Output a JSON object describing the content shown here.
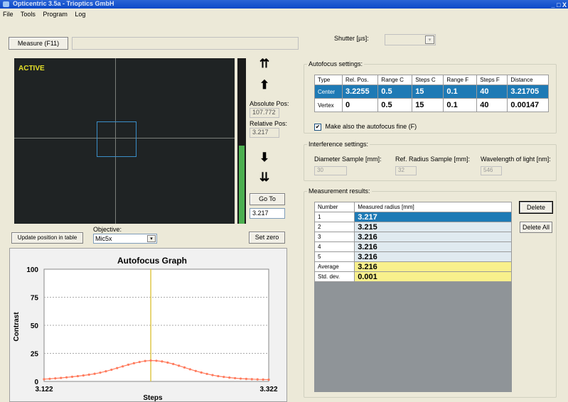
{
  "window": {
    "title": "Opticentric 3.5a - Trioptics GmbH",
    "controls": "_ □ X"
  },
  "menu": [
    "File",
    "Tools",
    "Program",
    "Log"
  ],
  "toolbar": {
    "measure_label": "Measure (F11)",
    "shutter_label": "Shutter [µs]:"
  },
  "camera": {
    "status": "ACTIVE"
  },
  "positions": {
    "absolute_label": "Absolute Pos:",
    "absolute_value": "107.772",
    "relative_label": "Relative Pos:",
    "relative_value": "3.217"
  },
  "controls": {
    "go_to_label": "Go To",
    "go_to_value": "3.217",
    "set_zero_label": "Set zero",
    "update_label": "Update position in table",
    "objective_label": "Objective:",
    "objective_value": "Mic5x"
  },
  "arrows": {
    "up_fast": "⇈",
    "up": "⬆",
    "down": "⬇",
    "down_fast": "⇊"
  },
  "autofocus": {
    "group_label": "Autofocus settings:",
    "headers": [
      "Type",
      "Rel. Pos.",
      "Range C",
      "Steps C",
      "Range F",
      "Steps F",
      "Distance"
    ],
    "rows": [
      [
        "Center",
        "3.2255",
        "0.5",
        "15",
        "0.1",
        "40",
        "3.21705"
      ],
      [
        "Vertex",
        "0",
        "0.5",
        "15",
        "0.1",
        "40",
        "0.00147"
      ]
    ],
    "fine_label": "Make also the autofocus fine (F)",
    "fine_checked": true
  },
  "interference": {
    "group_label": "Interference settings:",
    "diameter_label": "Diameter Sample [mm]:",
    "diameter_value": "30",
    "ref_radius_label": "Ref. Radius Sample [mm]:",
    "ref_radius_value": "32",
    "wavelength_label": "Wavelength of light [nm]:",
    "wavelength_value": "546"
  },
  "results": {
    "group_label": "Measurement results:",
    "headers": [
      "Number",
      "Measured radius [mm]"
    ],
    "rows": [
      [
        "1",
        "3.217"
      ],
      [
        "2",
        "3.215"
      ],
      [
        "3",
        "3.216"
      ],
      [
        "4",
        "3.216"
      ],
      [
        "5",
        "3.216"
      ]
    ],
    "average_label": "Average",
    "average_value": "3.216",
    "stddev_label": "Std. dev.",
    "stddev_value": "0.001",
    "delete_label": "Delete",
    "delete_all_label": "Delete All"
  },
  "colors": {
    "selected_row": "#1e7ab5",
    "stats_row": "#f8f08c",
    "curve": "#ff7a5c",
    "peak_line": "#e0c84a",
    "level_bar": "#4caf50"
  },
  "chart_data": {
    "type": "line",
    "title": "Autofocus Graph",
    "xlabel": "Steps",
    "ylabel": "Contrast",
    "xlim": [
      3.122,
      3.322
    ],
    "ylim": [
      0,
      100
    ],
    "yticks": [
      0,
      25,
      50,
      75,
      100
    ],
    "xticks": [
      "3.122",
      "3.322"
    ],
    "peak_x": 3.217,
    "x": [
      3.122,
      3.127,
      3.132,
      3.137,
      3.142,
      3.147,
      3.152,
      3.157,
      3.162,
      3.167,
      3.172,
      3.177,
      3.182,
      3.187,
      3.192,
      3.197,
      3.202,
      3.207,
      3.212,
      3.217,
      3.222,
      3.227,
      3.232,
      3.237,
      3.242,
      3.247,
      3.252,
      3.257,
      3.262,
      3.267,
      3.272,
      3.277,
      3.282,
      3.287,
      3.292,
      3.297,
      3.302,
      3.307,
      3.312,
      3.317,
      3.322
    ],
    "y": [
      2,
      2.3,
      2.7,
      3.1,
      3.6,
      4.1,
      4.7,
      5.3,
      6.0,
      6.8,
      7.8,
      9.0,
      10.4,
      11.9,
      13.4,
      14.9,
      16.2,
      17.3,
      18.2,
      18.6,
      18.4,
      17.8,
      16.8,
      15.5,
      14.0,
      12.4,
      10.8,
      9.3,
      7.9,
      6.7,
      5.6,
      4.7,
      4.0,
      3.4,
      2.9,
      2.5,
      2.2,
      2.0,
      1.8,
      1.7,
      1.6
    ],
    "grid": true
  }
}
